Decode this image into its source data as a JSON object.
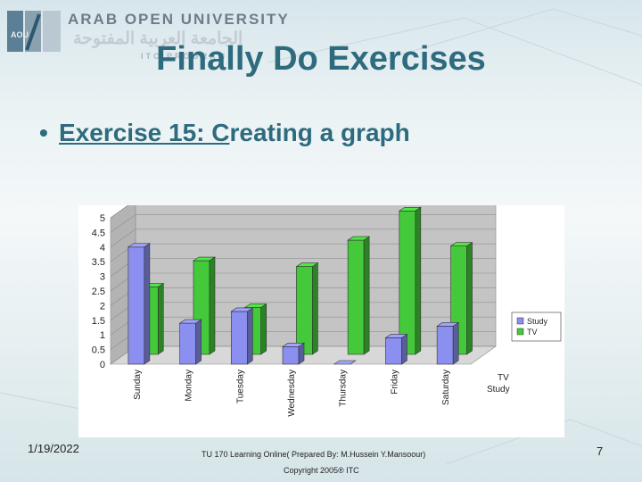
{
  "header": {
    "logo_english": "ARAB OPEN UNIVERSITY",
    "logo_arabic": "الجامعة العربية المفتوحة",
    "logo_subtext": "ITC PROGRAM",
    "logo_mark": "AOU"
  },
  "slide": {
    "title": "Finally Do Exercises",
    "bullet_prefix": "Exercise 15: C",
    "bullet_rest": "reating a graph"
  },
  "colors": {
    "study_bar": "#8b8ff0",
    "tv_bar": "#44c93a",
    "chart_wall": "#c4c4c4",
    "title_text": "#2e6b7e"
  },
  "chart_data": {
    "type": "bar",
    "style": "3d-clustered-column",
    "categories": [
      "Sunday",
      "Monday",
      "Tuesday",
      "Wednesday",
      "Thursday",
      "Friday",
      "Saturday"
    ],
    "series": [
      {
        "name": "Study",
        "values": [
          4.0,
          1.4,
          1.8,
          0.6,
          0.0,
          0.9,
          1.3
        ]
      },
      {
        "name": "TV",
        "values": [
          2.3,
          3.2,
          1.6,
          3.0,
          3.9,
          4.9,
          3.7
        ]
      }
    ],
    "depth_axis_labels": [
      "TV",
      "Study"
    ],
    "y_tick_labels": [
      "0",
      "0.5",
      "1",
      "1.5",
      "2",
      "2.5",
      "3",
      "3.5",
      "4",
      "4.5",
      "5"
    ],
    "ylim": [
      0,
      5
    ],
    "grid": true,
    "legend": "right"
  },
  "footer": {
    "date": "1/19/2022",
    "center": "TU 170 Learning Online( Prepared By: M.Hussein Y.Mansoour)",
    "copyright": "Copyright 2005® ITC",
    "page": "7"
  }
}
